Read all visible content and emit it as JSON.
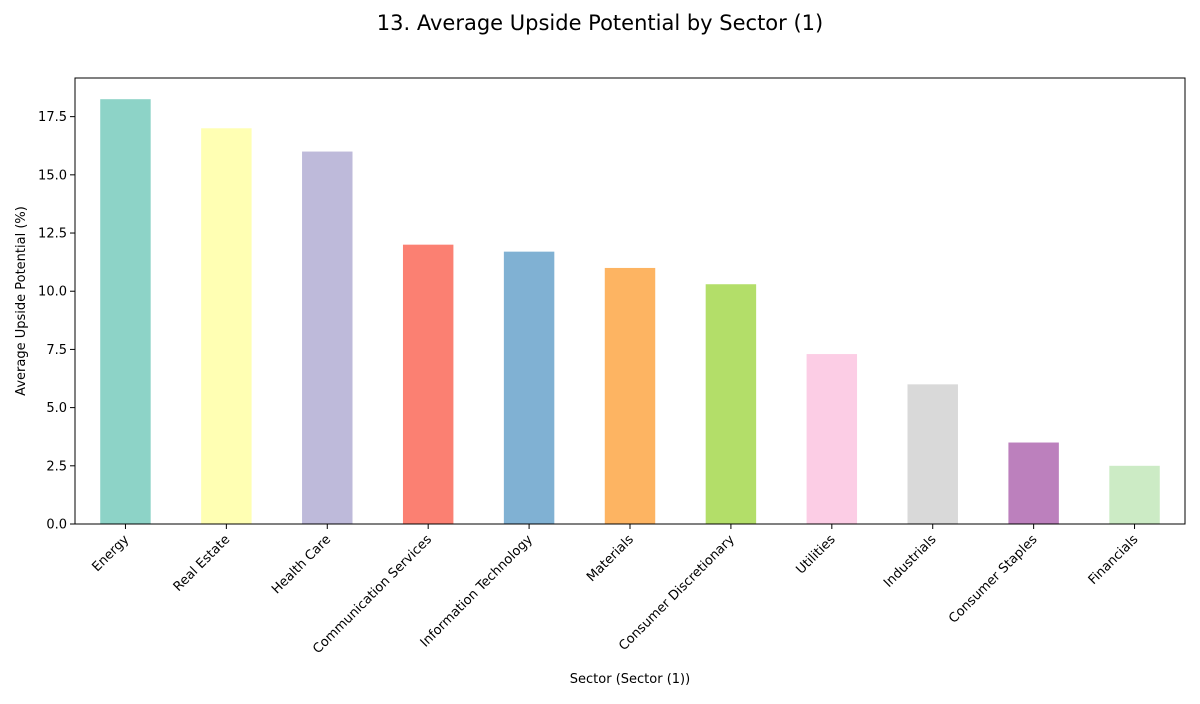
{
  "chart_data": {
    "type": "bar",
    "title": "13. Average Upside Potential by Sector (1)",
    "xlabel": "Sector (Sector (1))",
    "ylabel": "Average Upside Potential (%)",
    "categories": [
      "Energy",
      "Real Estate",
      "Health Care",
      "Communication Services",
      "Information Technology",
      "Materials",
      "Consumer Discretionary",
      "Utilities",
      "Industrials",
      "Consumer Staples",
      "Financials"
    ],
    "values": [
      18.25,
      17.0,
      16.0,
      12.0,
      11.7,
      11.0,
      10.3,
      7.3,
      6.0,
      3.5,
      2.5
    ],
    "colors": [
      "#8dd3c7",
      "#ffffb3",
      "#bebada",
      "#fb8072",
      "#80b1d3",
      "#fdb462",
      "#b3de69",
      "#fccde5",
      "#d9d9d9",
      "#bc80bd",
      "#ccebc5"
    ],
    "ylim": [
      0,
      19.16
    ],
    "yticks": [
      "0.0",
      "2.5",
      "5.0",
      "7.5",
      "10.0",
      "12.5",
      "15.0",
      "17.5"
    ],
    "grid": false,
    "legend": "none"
  }
}
